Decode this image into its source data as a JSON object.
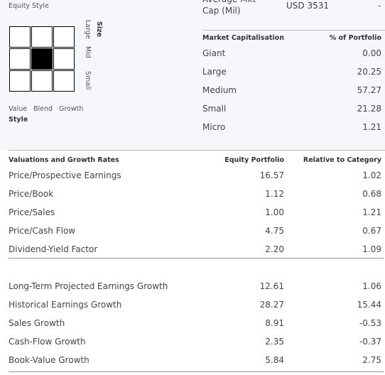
{
  "equity_style": {
    "title": "Equity Style",
    "size_label": "Size",
    "size_rows": [
      "Large",
      "Mid",
      "Small"
    ],
    "style_cols": [
      "Value",
      "Blend",
      "Growth"
    ],
    "style_label": "Style"
  },
  "avg_mkt_cap": {
    "label": "Average Mkt Cap (Mil)",
    "value": "USD 3531",
    "relative": "-"
  },
  "market_cap": {
    "headers": [
      "Market Capitalisation",
      "% of Portfolio"
    ],
    "rows": [
      [
        "Giant",
        "0.00"
      ],
      [
        "Large",
        "20.25"
      ],
      [
        "Medium",
        "57.27"
      ],
      [
        "Small",
        "21.28"
      ],
      [
        "Micro",
        "1.21"
      ]
    ]
  },
  "valuations": {
    "headers": [
      "Valuations and Growth Rates",
      "Equity Portfolio",
      "Relative to Category"
    ],
    "rows": [
      [
        "Price/Prospective Earnings",
        "16.57",
        "1.02"
      ],
      [
        "Price/Book",
        "1.12",
        "0.68"
      ],
      [
        "Price/Sales",
        "1.00",
        "1.21"
      ],
      [
        "Price/Cash Flow",
        "4.75",
        "0.67"
      ],
      [
        "Dividend-Yield Factor",
        "2.20",
        "1.09"
      ]
    ],
    "growth_rows": [
      [
        "Long-Term Projected Earnings Growth",
        "12.61",
        "1.06"
      ],
      [
        "Historical Earnings Growth",
        "28.27",
        "15.44"
      ],
      [
        "Sales Growth",
        "8.91",
        "-0.53"
      ],
      [
        "Cash-Flow Growth",
        "2.35",
        "-0.37"
      ],
      [
        "Book-Value Growth",
        "5.84",
        "2.75"
      ]
    ]
  }
}
